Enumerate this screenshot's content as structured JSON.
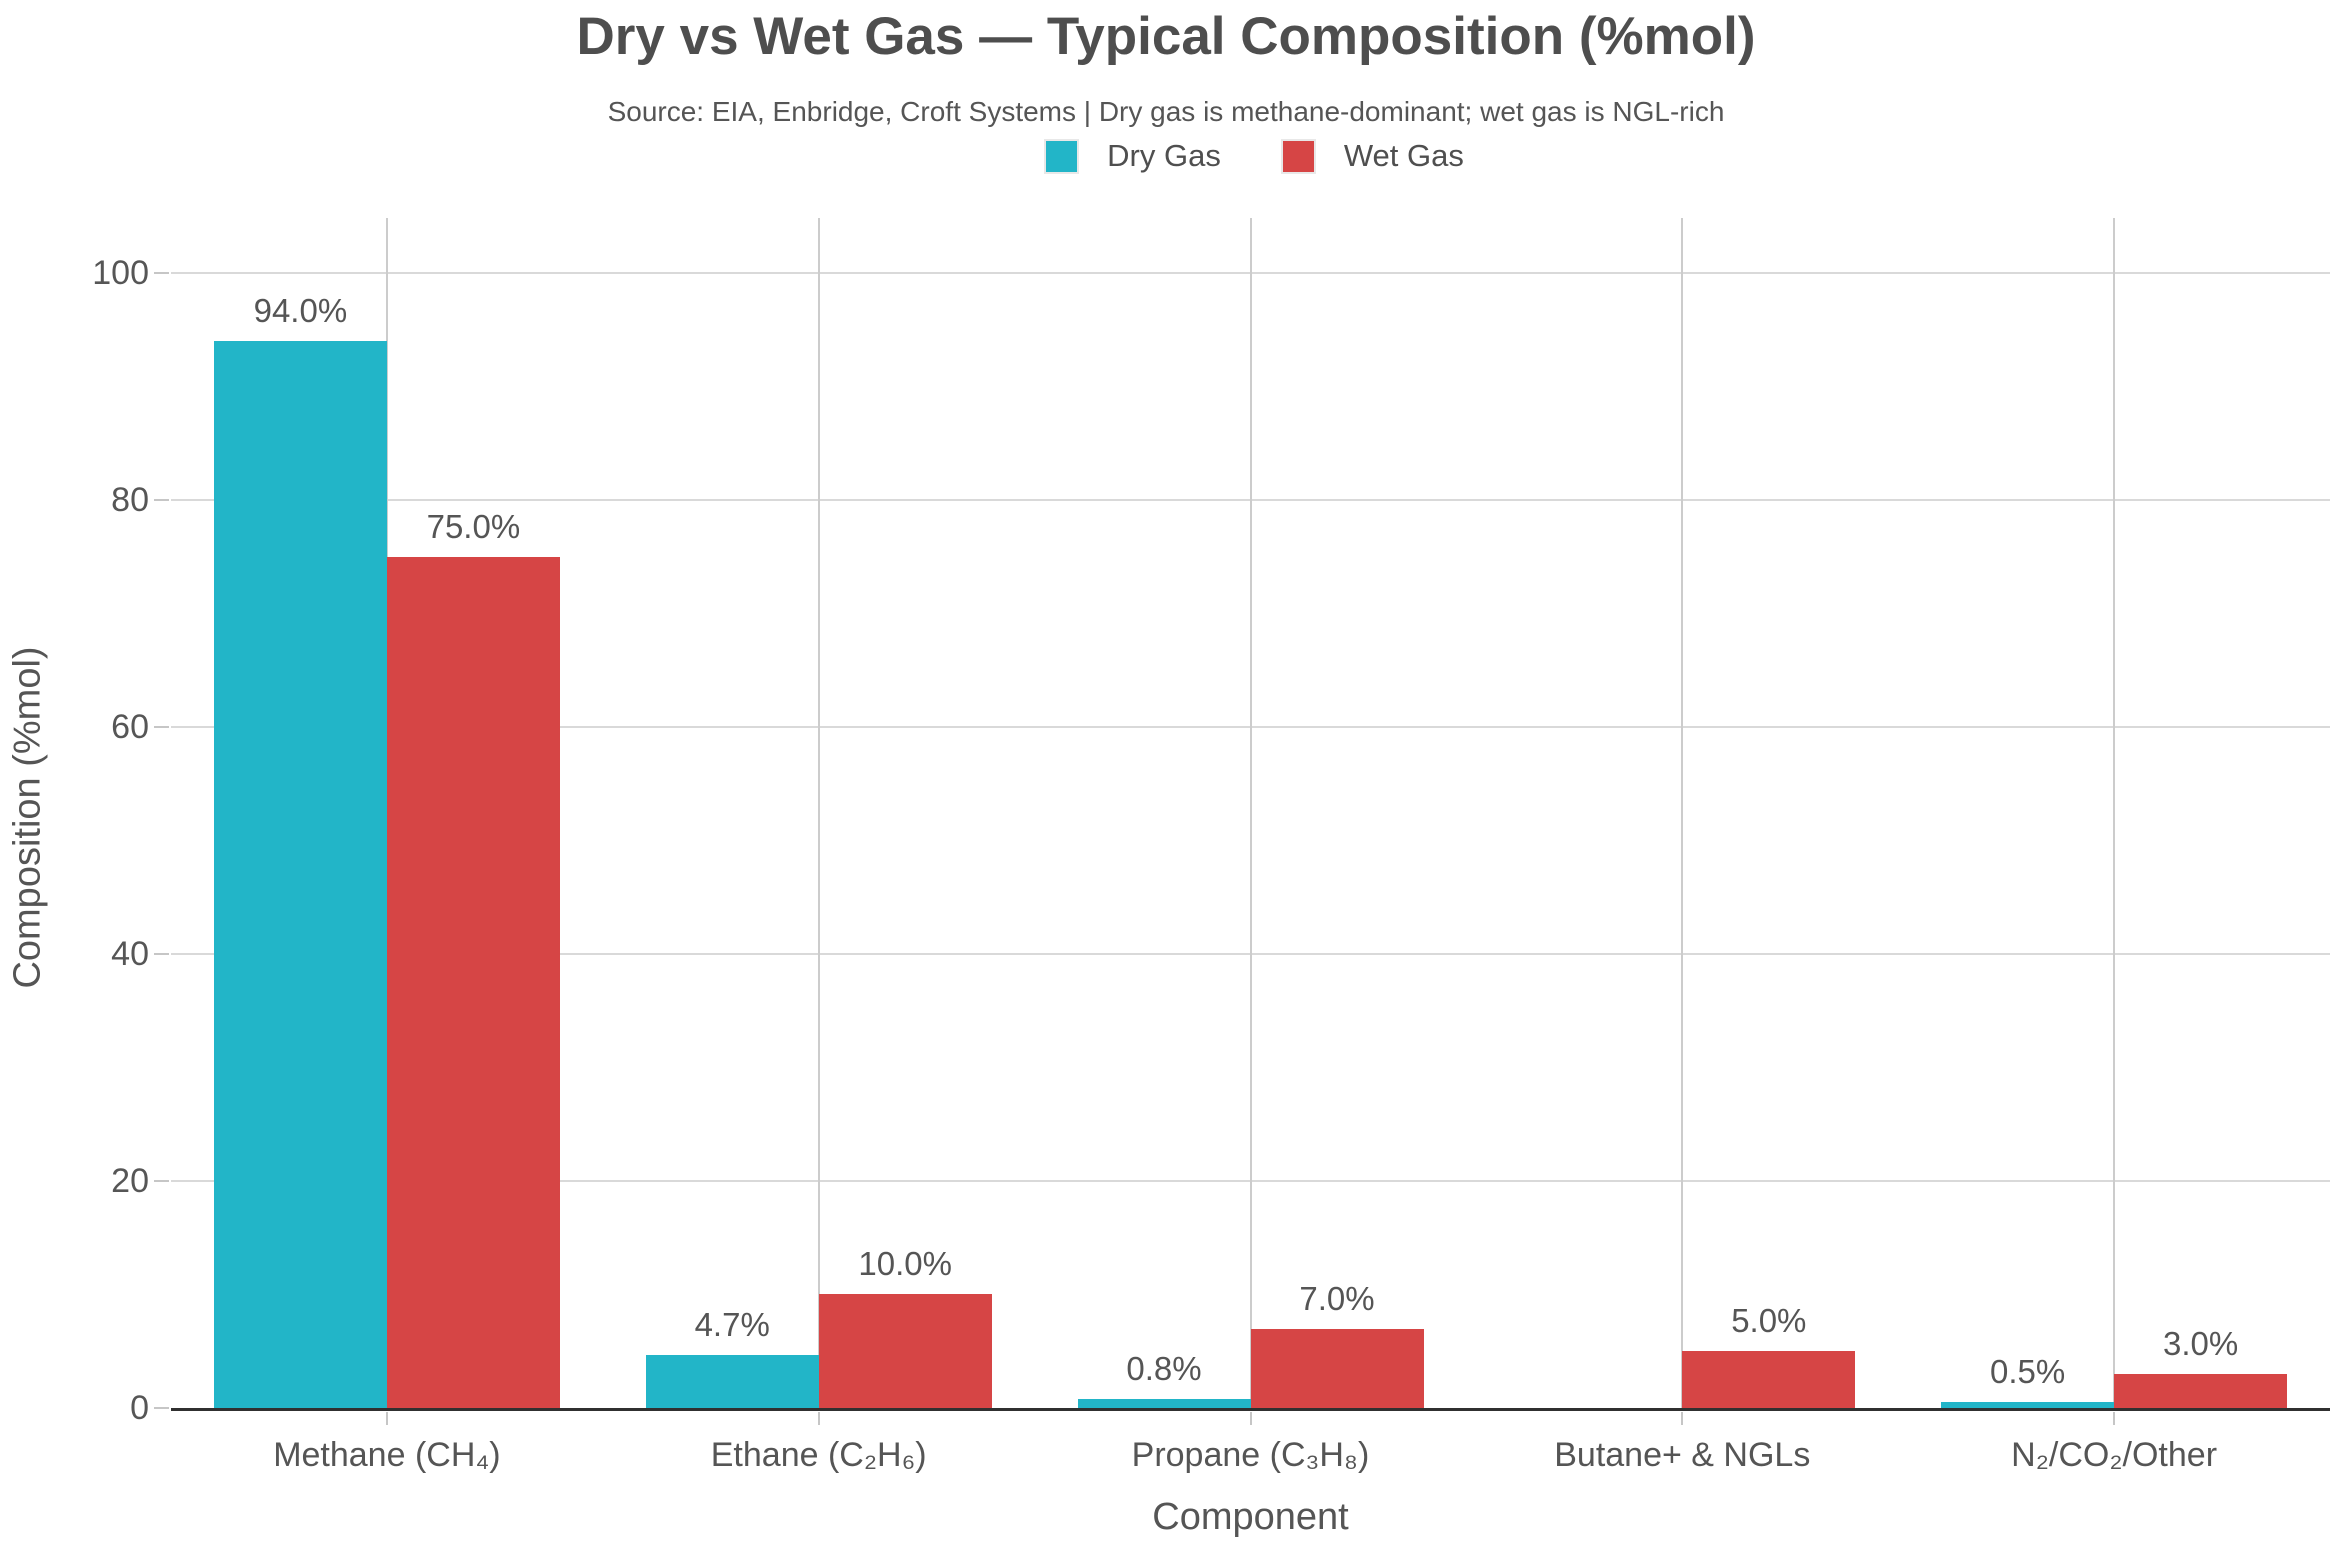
{
  "chart_data": {
    "type": "bar",
    "title": "Dry vs Wet Gas — Typical Composition (%mol)",
    "subtitle": "Source: EIA, Enbridge, Croft Systems | Dry gas is methane-dominant; wet gas is NGL-rich",
    "xlabel": "Component",
    "ylabel": "Composition (%mol)",
    "categories": [
      "Methane (CH₄)",
      "Ethane (C₂H₆)",
      "Propane (C₃H₈)",
      "Butane+ & NGLs",
      "N₂/CO₂/Other"
    ],
    "series": [
      {
        "name": "Dry Gas",
        "color": "#22b5c8",
        "values": [
          94.0,
          4.7,
          0.8,
          0.0,
          0.5
        ]
      },
      {
        "name": "Wet Gas",
        "color": "#d64545",
        "values": [
          75.0,
          10.0,
          7.0,
          5.0,
          3.0
        ]
      }
    ],
    "ylim": [
      0,
      100
    ],
    "yticks": [
      0,
      20,
      40,
      60,
      80,
      100
    ],
    "grid": true,
    "legend_position": "top-center",
    "value_label_format": "{v}%",
    "value_label_decimals": 1
  }
}
